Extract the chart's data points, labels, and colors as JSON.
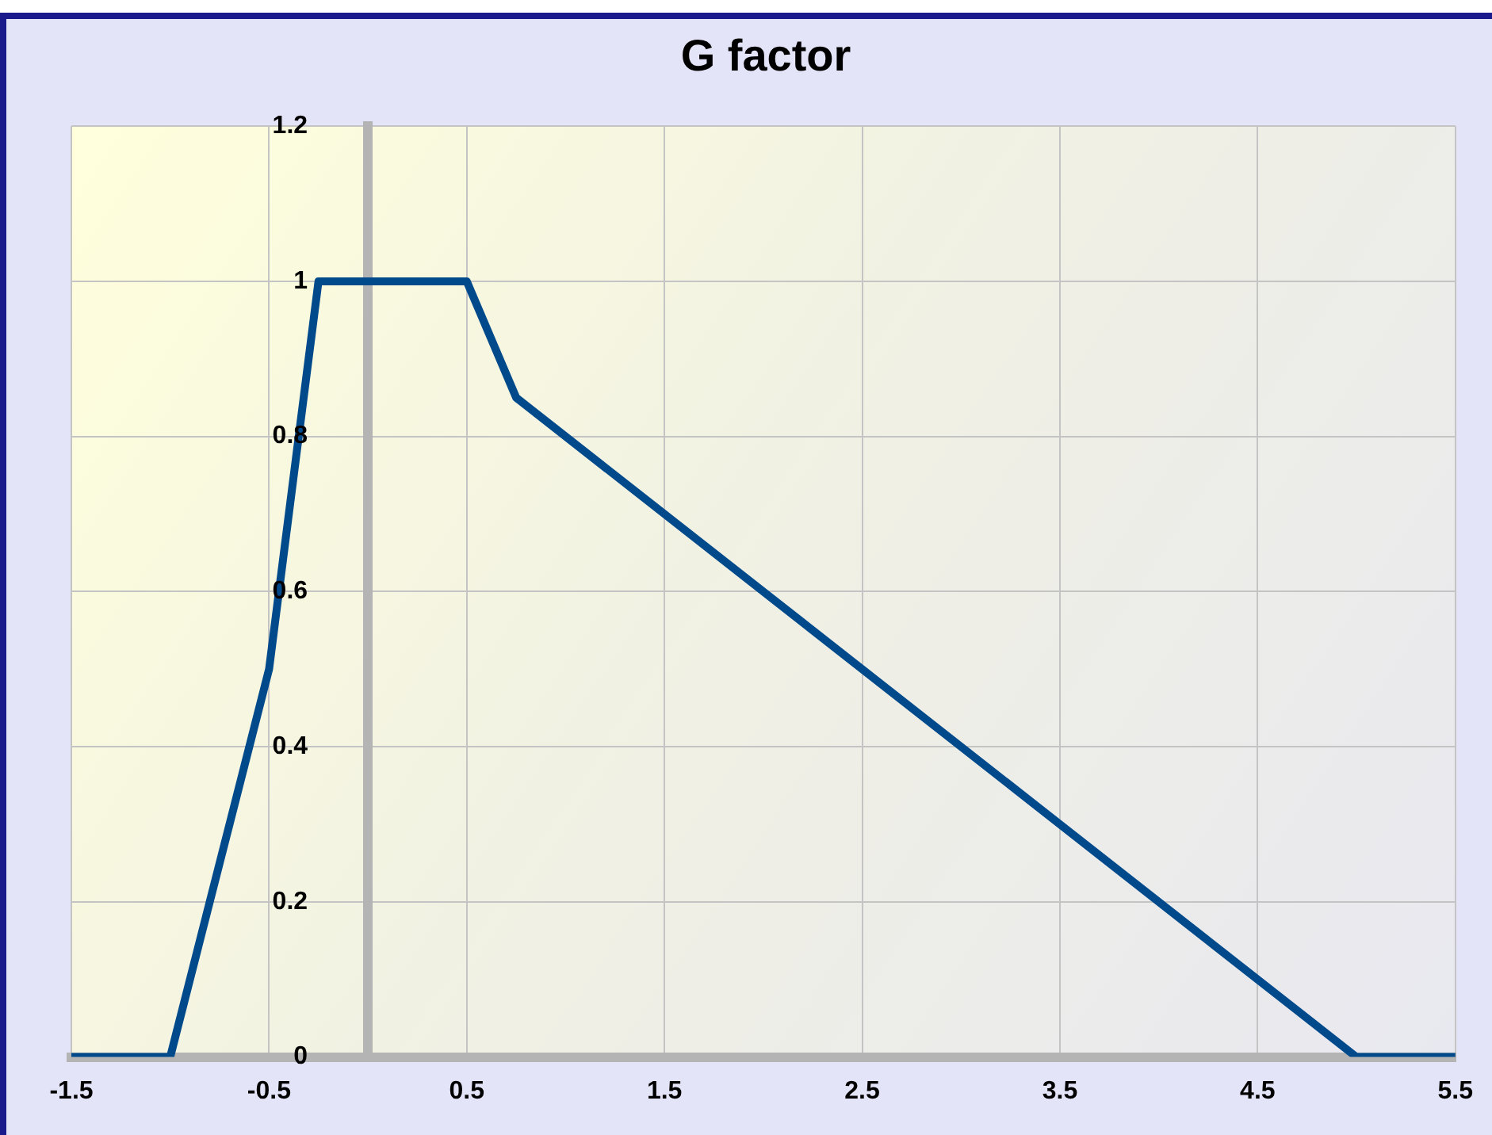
{
  "chart_data": {
    "type": "line",
    "title": "G factor",
    "x": [
      -1.5,
      -1,
      -0.5,
      -0.25,
      0.5,
      0.75,
      5,
      5.5
    ],
    "series": [
      {
        "color": "#004a8c",
        "values": [
          0,
          0,
          0.5,
          1,
          1,
          0.85,
          0,
          0
        ]
      }
    ],
    "xlim": [
      -1.5,
      5.5
    ],
    "xticks": [
      -1.5,
      -0.5,
      0.5,
      1.5,
      2.5,
      3.5,
      4.5,
      5.5
    ],
    "ylim": [
      0,
      1.2
    ],
    "yticks": [
      0,
      0.2,
      0.4,
      0.6,
      0.8,
      1,
      1.2
    ],
    "grid": true,
    "legend": false,
    "marker": "none",
    "line_style": "solid"
  }
}
